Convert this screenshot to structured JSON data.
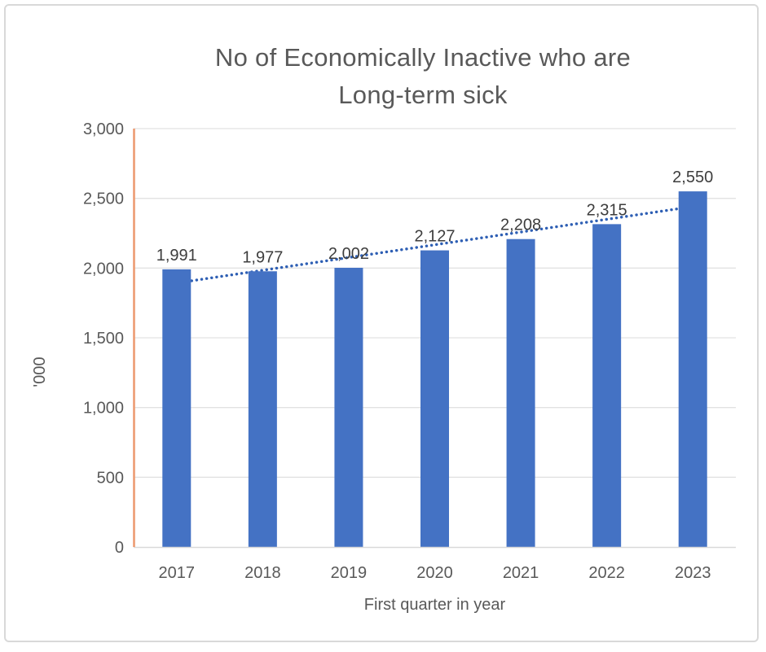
{
  "window": {
    "frame_border_color": "#d9d9d9",
    "background": "#ffffff"
  },
  "chart_data": {
    "type": "bar",
    "title": "No of Economically Inactive who are Long-term sick",
    "title_lines": [
      "No of Economically Inactive who are",
      "Long-term sick"
    ],
    "xlabel": "First quarter in year",
    "ylabel": "'000",
    "categories": [
      "2017",
      "2018",
      "2019",
      "2020",
      "2021",
      "2022",
      "2023"
    ],
    "values": [
      1991,
      1977,
      2002,
      2127,
      2208,
      2315,
      2550
    ],
    "data_labels": [
      "1,991",
      "1,977",
      "2,002",
      "2,127",
      "2,208",
      "2,315",
      "2,550"
    ],
    "ylim": [
      0,
      3000
    ],
    "yticks": [
      0,
      500,
      1000,
      1500,
      2000,
      2500,
      3000
    ],
    "ytick_labels": [
      "0",
      "500",
      "1,000",
      "1,500",
      "2,000",
      "2,500",
      "3,000"
    ],
    "grid": true,
    "legend": "none",
    "trendline": {
      "type": "linear",
      "style": "dotted",
      "endpoints_value": [
        1893,
        2441
      ]
    },
    "colors": {
      "bar": "#4472C4",
      "trendline": "#2E5FB4",
      "gridline": "#E2E2E2",
      "x_axis_line": "#D9D9D9",
      "y_axis_line": "#ED9B72",
      "title_text": "#595959",
      "axis_text": "#595959",
      "data_label_text": "#3d3d3d"
    }
  }
}
